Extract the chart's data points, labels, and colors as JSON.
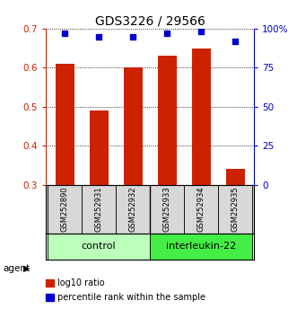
{
  "title": "GDS3226 / 29566",
  "samples": [
    "GSM252890",
    "GSM252931",
    "GSM252932",
    "GSM252933",
    "GSM252934",
    "GSM252935"
  ],
  "log10_ratio": [
    0.61,
    0.49,
    0.6,
    0.63,
    0.65,
    0.34
  ],
  "percentile_rank": [
    97,
    95,
    95,
    97,
    98,
    92
  ],
  "ylim_left": [
    0.3,
    0.7
  ],
  "ylim_right": [
    0,
    100
  ],
  "yticks_left": [
    0.3,
    0.4,
    0.5,
    0.6,
    0.7
  ],
  "yticks_right": [
    0,
    25,
    50,
    75,
    100
  ],
  "ytick_labels_right": [
    "0",
    "25",
    "50",
    "75",
    "100%"
  ],
  "bar_color": "#cc2200",
  "dot_color": "#0000cc",
  "bar_width": 0.55,
  "groups": [
    {
      "label": "control",
      "indices": [
        0,
        1,
        2
      ],
      "color": "#bbffbb"
    },
    {
      "label": "interleukin-22",
      "indices": [
        3,
        4,
        5
      ],
      "color": "#44ee44"
    }
  ],
  "legend_items": [
    {
      "color": "#cc2200",
      "label": "log10 ratio"
    },
    {
      "color": "#0000cc",
      "label": "percentile rank within the sample"
    }
  ],
  "background_color": "#ffffff",
  "title_fontsize": 10,
  "tick_fontsize": 7.5,
  "sample_fontsize": 6,
  "group_fontsize": 8,
  "legend_fontsize": 7
}
